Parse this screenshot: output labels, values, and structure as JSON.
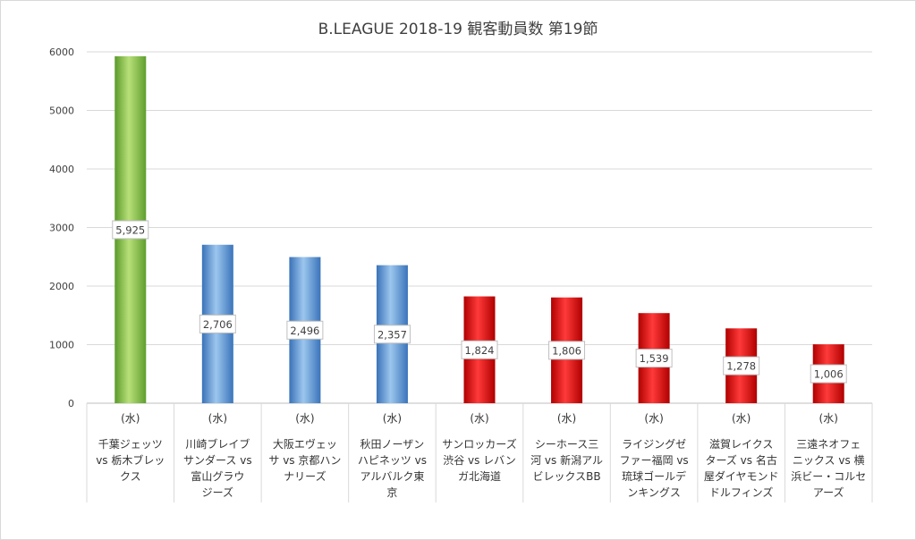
{
  "chart_data": {
    "type": "bar",
    "title": "B.LEAGUE 2018-19 観客動員数 第19節",
    "ylim": [
      0,
      6000
    ],
    "yticks": [
      0,
      1000,
      2000,
      3000,
      4000,
      5000,
      6000
    ],
    "grid": true,
    "legend": "none",
    "categories": [
      {
        "day": "(水)",
        "lines": [
          "千葉ジェッツ",
          "vs 栃木ブレッ",
          "クス"
        ]
      },
      {
        "day": "(水)",
        "lines": [
          "川崎ブレイブ",
          "サンダース vs",
          "富山グラウ",
          "ジーズ"
        ]
      },
      {
        "day": "(水)",
        "lines": [
          "大阪エヴェッ",
          "サ vs 京都ハン",
          "ナリーズ"
        ]
      },
      {
        "day": "(水)",
        "lines": [
          "秋田ノーザン",
          "ハピネッツ vs",
          "アルバルク東",
          "京"
        ]
      },
      {
        "day": "(水)",
        "lines": [
          "サンロッカーズ",
          "渋谷 vs レバン",
          "ガ北海道"
        ]
      },
      {
        "day": "(水)",
        "lines": [
          "シーホース三",
          "河 vs 新潟アル",
          "ビレックスBB"
        ]
      },
      {
        "day": "(水)",
        "lines": [
          "ライジングゼ",
          "ファー福岡 vs",
          "琉球ゴールデ",
          "ンキングス"
        ]
      },
      {
        "day": "(水)",
        "lines": [
          "滋賀レイクス",
          "ターズ vs 名古",
          "屋ダイヤモンド",
          "ドルフィンズ"
        ]
      },
      {
        "day": "(水)",
        "lines": [
          "三遠ネオフェ",
          "ニックス vs 横",
          "浜ビー・コルセ",
          "アーズ"
        ]
      }
    ],
    "values": [
      5925,
      2706,
      2496,
      2357,
      1824,
      1806,
      1539,
      1278,
      1006
    ],
    "data_labels": [
      "5,925",
      "2,706",
      "2,496",
      "2,357",
      "1,824",
      "1,806",
      "1,539",
      "1,278",
      "1,006"
    ],
    "bar_colors": [
      "#7dc242",
      "#4f8fd6",
      "#4f8fd6",
      "#4f8fd6",
      "#e01010",
      "#e01010",
      "#e01010",
      "#e01010",
      "#e01010"
    ],
    "grid_color": "#d9d9d9",
    "axis_color": "#bfbfbf"
  }
}
